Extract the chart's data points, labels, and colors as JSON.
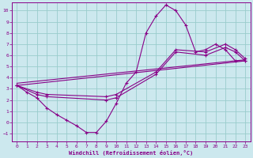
{
  "xlabel": "Windchill (Refroidissement éolien,°C)",
  "bg_color": "#cce8ee",
  "line_color": "#880088",
  "grid_color": "#99cccc",
  "xlim": [
    -0.5,
    23.5
  ],
  "ylim": [
    -1.7,
    10.7
  ],
  "xticks": [
    0,
    1,
    2,
    3,
    4,
    5,
    6,
    7,
    8,
    9,
    10,
    11,
    12,
    13,
    14,
    15,
    16,
    17,
    18,
    19,
    20,
    21,
    22,
    23
  ],
  "yticks": [
    -1,
    0,
    1,
    2,
    3,
    4,
    5,
    6,
    7,
    8,
    9,
    10
  ],
  "curve1_x": [
    0,
    1,
    2,
    3,
    4,
    5,
    6,
    7,
    8,
    9,
    10,
    11,
    12,
    13,
    14,
    15,
    16,
    17,
    18,
    19,
    20,
    21,
    22,
    23
  ],
  "curve1_y": [
    3.3,
    2.7,
    2.2,
    1.3,
    0.7,
    0.2,
    -0.3,
    -0.9,
    -0.9,
    0.1,
    1.7,
    3.5,
    4.5,
    8.0,
    9.5,
    10.5,
    10.0,
    8.7,
    6.3,
    6.5,
    7.0,
    6.5,
    5.5,
    5.5
  ],
  "line2_x": [
    0,
    23
  ],
  "line2_y": [
    3.3,
    5.5
  ],
  "line3_x": [
    0,
    23
  ],
  "line3_y": [
    3.3,
    5.5
  ],
  "curve2_x": [
    0,
    2,
    3,
    9,
    10,
    14,
    16,
    19,
    21,
    22,
    23
  ],
  "curve2_y": [
    3.3,
    2.5,
    2.3,
    2.0,
    2.2,
    4.3,
    6.3,
    6.0,
    6.7,
    6.3,
    5.5
  ],
  "curve3_x": [
    0,
    2,
    3,
    9,
    10,
    14,
    16,
    19,
    21,
    22,
    23
  ],
  "curve3_y": [
    3.3,
    2.7,
    2.5,
    2.3,
    2.5,
    4.5,
    6.5,
    6.3,
    7.0,
    6.5,
    5.7
  ]
}
